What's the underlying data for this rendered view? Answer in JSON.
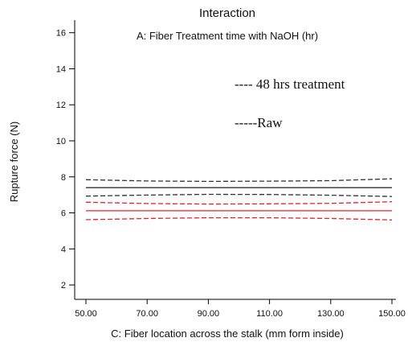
{
  "chart_data": {
    "type": "line",
    "title": "Interaction",
    "subtitle": "A: Fiber Treatment time with NaOH (hr)",
    "xlabel": "C: Fiber location across the stalk (mm form inside)",
    "ylabel": "Rupture force (N)",
    "xlim": [
      50,
      150
    ],
    "ylim": [
      1.2,
      16.7
    ],
    "x_ticks": [
      "50.00",
      "70.00",
      "90.00",
      "110.00",
      "130.00",
      "150.00"
    ],
    "y_ticks": [
      "2",
      "4",
      "6",
      "8",
      "10",
      "12",
      "14",
      "16"
    ],
    "x": [
      50,
      70,
      90,
      110,
      130,
      150
    ],
    "series": [
      {
        "name": "Raw",
        "role": "upper",
        "dash": "dashed",
        "color": "#333333",
        "values": [
          7.84,
          7.77,
          7.75,
          7.76,
          7.79,
          7.89
        ]
      },
      {
        "name": "Raw",
        "role": "mean",
        "dash": "solid",
        "color": "#333333",
        "values": [
          7.4,
          7.4,
          7.4,
          7.4,
          7.4,
          7.4
        ]
      },
      {
        "name": "Raw",
        "role": "lower",
        "dash": "dashed",
        "color": "#333333",
        "values": [
          6.93,
          6.99,
          7.03,
          7.02,
          6.98,
          6.91
        ]
      },
      {
        "name": "48 hrs treatment",
        "role": "upper",
        "dash": "dashed",
        "color": "#e8202a",
        "values": [
          6.59,
          6.52,
          6.49,
          6.5,
          6.53,
          6.62
        ]
      },
      {
        "name": "48 hrs treatment",
        "role": "mean",
        "dash": "solid",
        "color": "#e8202a",
        "values": [
          6.12,
          6.12,
          6.12,
          6.12,
          6.12,
          6.12
        ]
      },
      {
        "name": "48 hrs treatment",
        "role": "lower",
        "dash": "dashed",
        "color": "#e8202a",
        "values": [
          5.62,
          5.69,
          5.73,
          5.73,
          5.69,
          5.61
        ]
      }
    ],
    "legend": [
      {
        "text": "---- 48 hrs treatment",
        "color": "#e8202a"
      },
      {
        "text": "-----Raw",
        "color": "#111111"
      }
    ],
    "legend_position": "top-right",
    "grid": false
  }
}
